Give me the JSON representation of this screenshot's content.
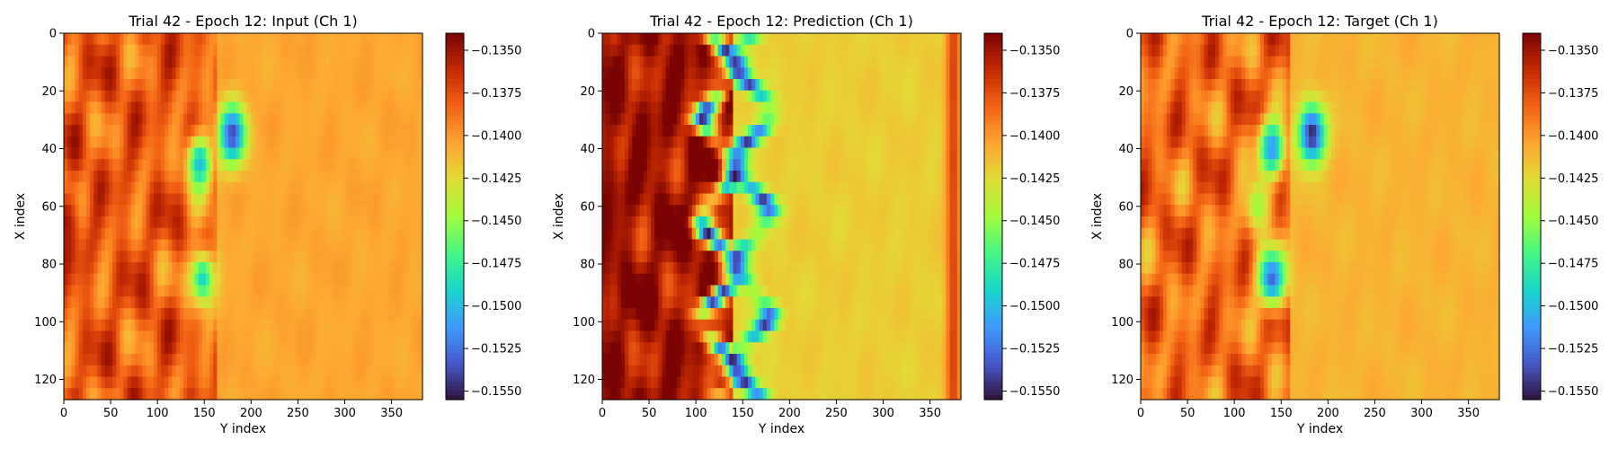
{
  "chart_data": [
    {
      "type": "heatmap",
      "title": "Trial 42 - Epoch 12: Input (Ch 1)",
      "xlabel": "Y index",
      "ylabel": "X index",
      "xlim": [
        0,
        383
      ],
      "ylim": [
        127,
        0
      ],
      "x_ticks": [
        "0",
        "50",
        "100",
        "150",
        "200",
        "250",
        "300",
        "350"
      ],
      "y_ticks": [
        "0",
        "20",
        "40",
        "60",
        "80",
        "100",
        "120"
      ],
      "colormap": "turbo",
      "colorbar": {
        "vmin": -0.1555,
        "vmax": -0.134,
        "ticks": [
          "−0.1350",
          "−0.1375",
          "−0.1400",
          "−0.1425",
          "−0.1450",
          "−0.1475",
          "−0.1500",
          "−0.1525",
          "−0.1550"
        ]
      },
      "field": {
        "background": -0.1405,
        "left_band_value": -0.138,
        "front_y_center": 165,
        "features": [
          {
            "kind": "blob",
            "cy": 35,
            "cx": 180,
            "value": -0.154
          },
          {
            "kind": "blob",
            "cy": 45,
            "cx": 145,
            "value": -0.15
          },
          {
            "kind": "blob",
            "cy": 85,
            "cx": 148,
            "value": -0.149
          },
          {
            "kind": "blob",
            "cy": 65,
            "cx": 0,
            "value": -0.135
          }
        ]
      }
    },
    {
      "type": "heatmap",
      "title": "Trial 42 - Epoch 12: Prediction (Ch 1)",
      "xlabel": "Y index",
      "ylabel": "X index",
      "xlim": [
        0,
        383
      ],
      "ylim": [
        127,
        0
      ],
      "x_ticks": [
        "0",
        "50",
        "100",
        "150",
        "200",
        "250",
        "300",
        "350"
      ],
      "y_ticks": [
        "0",
        "20",
        "40",
        "60",
        "80",
        "100",
        "120"
      ],
      "colormap": "turbo",
      "colorbar": {
        "vmin": -0.1555,
        "vmax": -0.134,
        "ticks": [
          "−0.1350",
          "−0.1375",
          "−0.1400",
          "−0.1425",
          "−0.1450",
          "−0.1475",
          "−0.1500",
          "−0.1525",
          "−0.1550"
        ]
      },
      "field": {
        "background": -0.142,
        "left_band_value": -0.135,
        "front_y_center": 140,
        "features": [
          {
            "kind": "band",
            "cx": 125,
            "value": -0.1555
          },
          {
            "kind": "band",
            "cx": 160,
            "value": -0.1545
          },
          {
            "kind": "edge",
            "cx": 375,
            "value": -0.135
          },
          {
            "kind": "edge",
            "cx": 5,
            "value": -0.1345
          }
        ]
      }
    },
    {
      "type": "heatmap",
      "title": "Trial 42 - Epoch 12: Target (Ch 1)",
      "xlabel": "Y index",
      "ylabel": "X index",
      "xlim": [
        0,
        383
      ],
      "ylim": [
        127,
        0
      ],
      "x_ticks": [
        "0",
        "50",
        "100",
        "150",
        "200",
        "250",
        "300",
        "350"
      ],
      "y_ticks": [
        "0",
        "20",
        "40",
        "60",
        "80",
        "100",
        "120"
      ],
      "colormap": "turbo",
      "colorbar": {
        "vmin": -0.1555,
        "vmax": -0.134,
        "ticks": [
          "−0.1350",
          "−0.1375",
          "−0.1400",
          "−0.1425",
          "−0.1450",
          "−0.1475",
          "−0.1500",
          "−0.1525",
          "−0.1550"
        ]
      },
      "field": {
        "background": -0.141,
        "left_band_value": -0.1385,
        "front_y_center": 160,
        "features": [
          {
            "kind": "blob",
            "cy": 40,
            "cx": 140,
            "value": -0.1515
          },
          {
            "kind": "blob",
            "cy": 35,
            "cx": 183,
            "value": -0.155
          },
          {
            "kind": "blob",
            "cy": 85,
            "cx": 140,
            "value": -0.153
          },
          {
            "kind": "blob",
            "cy": 60,
            "cx": 125,
            "value": -0.145
          }
        ]
      }
    }
  ],
  "colors": {
    "axis": "#000000",
    "background": "#ffffff"
  }
}
